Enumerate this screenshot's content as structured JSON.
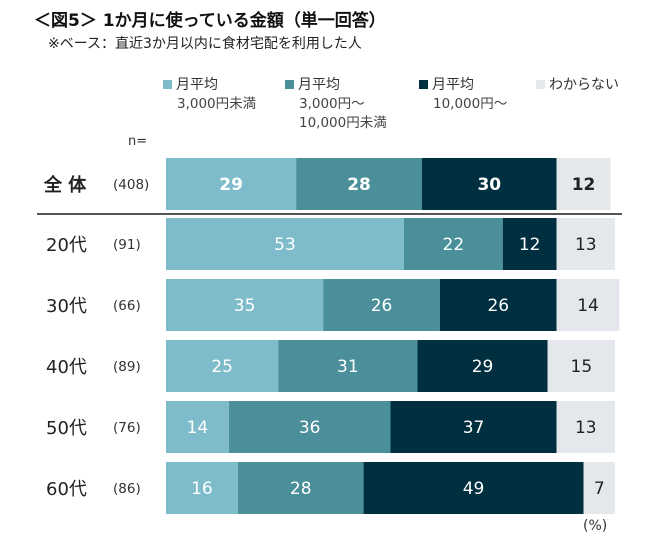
{
  "title": "＜図5＞ 1か月に使っている金額（単一回答）",
  "subtitle": "※ベース：直近3か月以内に食材宅配を利用した人",
  "legend": [
    {
      "line1": "月平均",
      "line2": "3,000円未満",
      "line3": "",
      "color": "#7fbccb"
    },
    {
      "line1": "月平均",
      "line2": "3,000円～",
      "line3": "10,000円未満",
      "color": "#4a8f9a"
    },
    {
      "line1": "月平均",
      "line2": "10,000円～",
      "line3": "",
      "color": "#003040"
    },
    {
      "line1": "わからない",
      "line2": "",
      "line3": "",
      "color": "#e4e7eb"
    }
  ],
  "n_label": "n=",
  "unit_label": "(%)",
  "chart_data": {
    "type": "bar",
    "orientation": "horizontal",
    "stacked": true,
    "title": "＜図5＞ 1か月に使っている金額（単一回答）",
    "categories": [
      "全 体",
      "20代",
      "30代",
      "40代",
      "50代",
      "60代"
    ],
    "n_values": [
      "(408)",
      "(91)",
      "(66)",
      "(89)",
      "(76)",
      "(86)"
    ],
    "series": [
      {
        "name": "月平均 3,000円未満",
        "values": [
          29,
          53,
          35,
          25,
          14,
          16
        ]
      },
      {
        "name": "月平均 3,000円～10,000円未満",
        "values": [
          28,
          22,
          26,
          31,
          36,
          28
        ]
      },
      {
        "name": "月平均 10,000円～",
        "values": [
          30,
          12,
          26,
          29,
          37,
          49
        ]
      },
      {
        "name": "わからない",
        "values": [
          12,
          13,
          14,
          15,
          13,
          7
        ]
      }
    ],
    "xlim": [
      0,
      100
    ],
    "unit": "%"
  }
}
